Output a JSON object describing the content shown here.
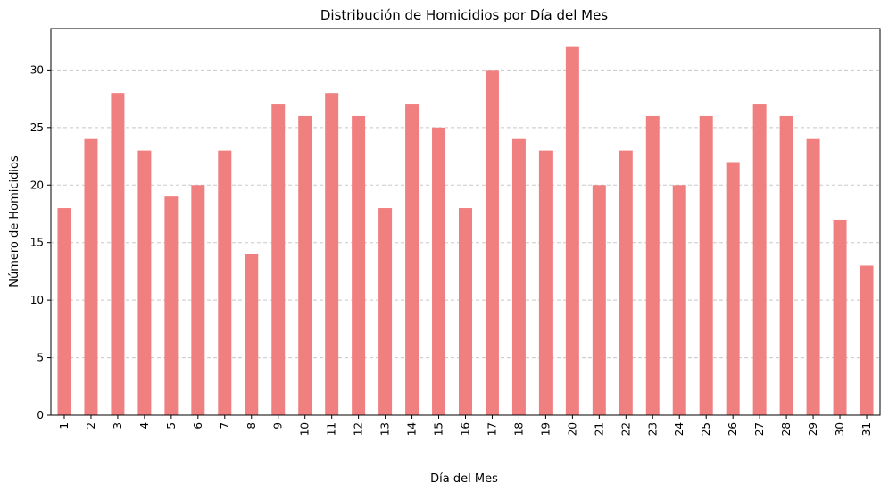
{
  "chart_data": {
    "type": "bar",
    "title": "Distribución de Homicidios por Día del Mes",
    "xlabel": "Día del Mes",
    "ylabel": "Número de Homicidios",
    "categories": [
      "1",
      "2",
      "3",
      "4",
      "5",
      "6",
      "7",
      "8",
      "9",
      "10",
      "11",
      "12",
      "13",
      "14",
      "15",
      "16",
      "17",
      "18",
      "19",
      "20",
      "21",
      "22",
      "23",
      "24",
      "25",
      "26",
      "27",
      "28",
      "29",
      "30",
      "31"
    ],
    "values": [
      18,
      24,
      28,
      23,
      19,
      20,
      23,
      14,
      27,
      26,
      28,
      26,
      18,
      27,
      25,
      18,
      30,
      24,
      23,
      32,
      20,
      23,
      26,
      20,
      26,
      22,
      27,
      26,
      24,
      17,
      13
    ],
    "ylim": [
      0,
      33.6
    ],
    "yticks": [
      "0",
      "5",
      "10",
      "15",
      "20",
      "25",
      "30"
    ],
    "grid": "y-dashed",
    "bar_color": "#f08080",
    "grid_color": "#c8c8c8"
  }
}
